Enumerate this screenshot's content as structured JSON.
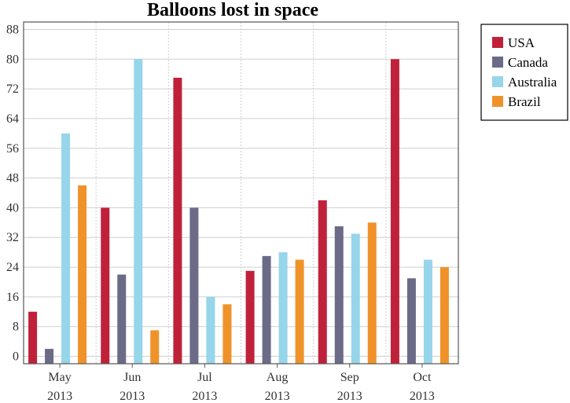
{
  "chart_data": {
    "type": "bar",
    "title": "Balloons lost in space",
    "xlabel": "",
    "ylabel": "",
    "categories": [
      [
        "May",
        "2013"
      ],
      [
        "Jun",
        "2013"
      ],
      [
        "Jul",
        "2013"
      ],
      [
        "Aug",
        "2013"
      ],
      [
        "Sep",
        "2013"
      ],
      [
        "Oct",
        "2013"
      ]
    ],
    "ylim": [
      -2,
      90
    ],
    "yticks": [
      0,
      8,
      16,
      24,
      32,
      40,
      48,
      56,
      64,
      72,
      80,
      88
    ],
    "grid": true,
    "legend_position": "top-right",
    "series": [
      {
        "name": "USA",
        "color": "#c0213a",
        "values": [
          12,
          40,
          75,
          23,
          42,
          80
        ]
      },
      {
        "name": "Canada",
        "color": "#6b6b88",
        "values": [
          2,
          22,
          40,
          27,
          35,
          21
        ]
      },
      {
        "name": "Australia",
        "color": "#96d5ea",
        "values": [
          60,
          80,
          16,
          28,
          33,
          26
        ]
      },
      {
        "name": "Brazil",
        "color": "#f0922a",
        "values": [
          46,
          7,
          14,
          26,
          36,
          24
        ]
      }
    ]
  }
}
